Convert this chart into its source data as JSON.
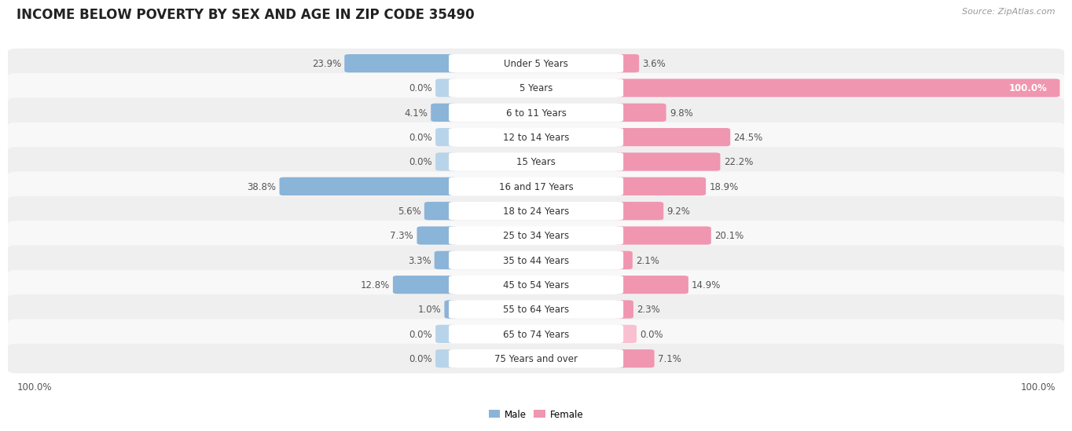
{
  "title": "INCOME BELOW POVERTY BY SEX AND AGE IN ZIP CODE 35490",
  "source": "Source: ZipAtlas.com",
  "categories": [
    "Under 5 Years",
    "5 Years",
    "6 to 11 Years",
    "12 to 14 Years",
    "15 Years",
    "16 and 17 Years",
    "18 to 24 Years",
    "25 to 34 Years",
    "35 to 44 Years",
    "45 to 54 Years",
    "55 to 64 Years",
    "65 to 74 Years",
    "75 Years and over"
  ],
  "male": [
    23.9,
    0.0,
    4.1,
    0.0,
    0.0,
    38.8,
    5.6,
    7.3,
    3.3,
    12.8,
    1.0,
    0.0,
    0.0
  ],
  "female": [
    3.6,
    100.0,
    9.8,
    24.5,
    22.2,
    18.9,
    9.2,
    20.1,
    2.1,
    14.9,
    2.3,
    0.0,
    7.1
  ],
  "male_color": "#8ab4d8",
  "female_color": "#f096b0",
  "male_color_light": "#b8d4ea",
  "female_color_light": "#f8c0d0",
  "row_bg_odd": "#efefef",
  "row_bg_even": "#f8f8f8",
  "text_color": "#555555",
  "title_color": "#222222",
  "source_color": "#999999",
  "max_value": 100.0,
  "title_fontsize": 12,
  "label_fontsize": 8.5,
  "value_fontsize": 8.5,
  "tick_fontsize": 8.5
}
